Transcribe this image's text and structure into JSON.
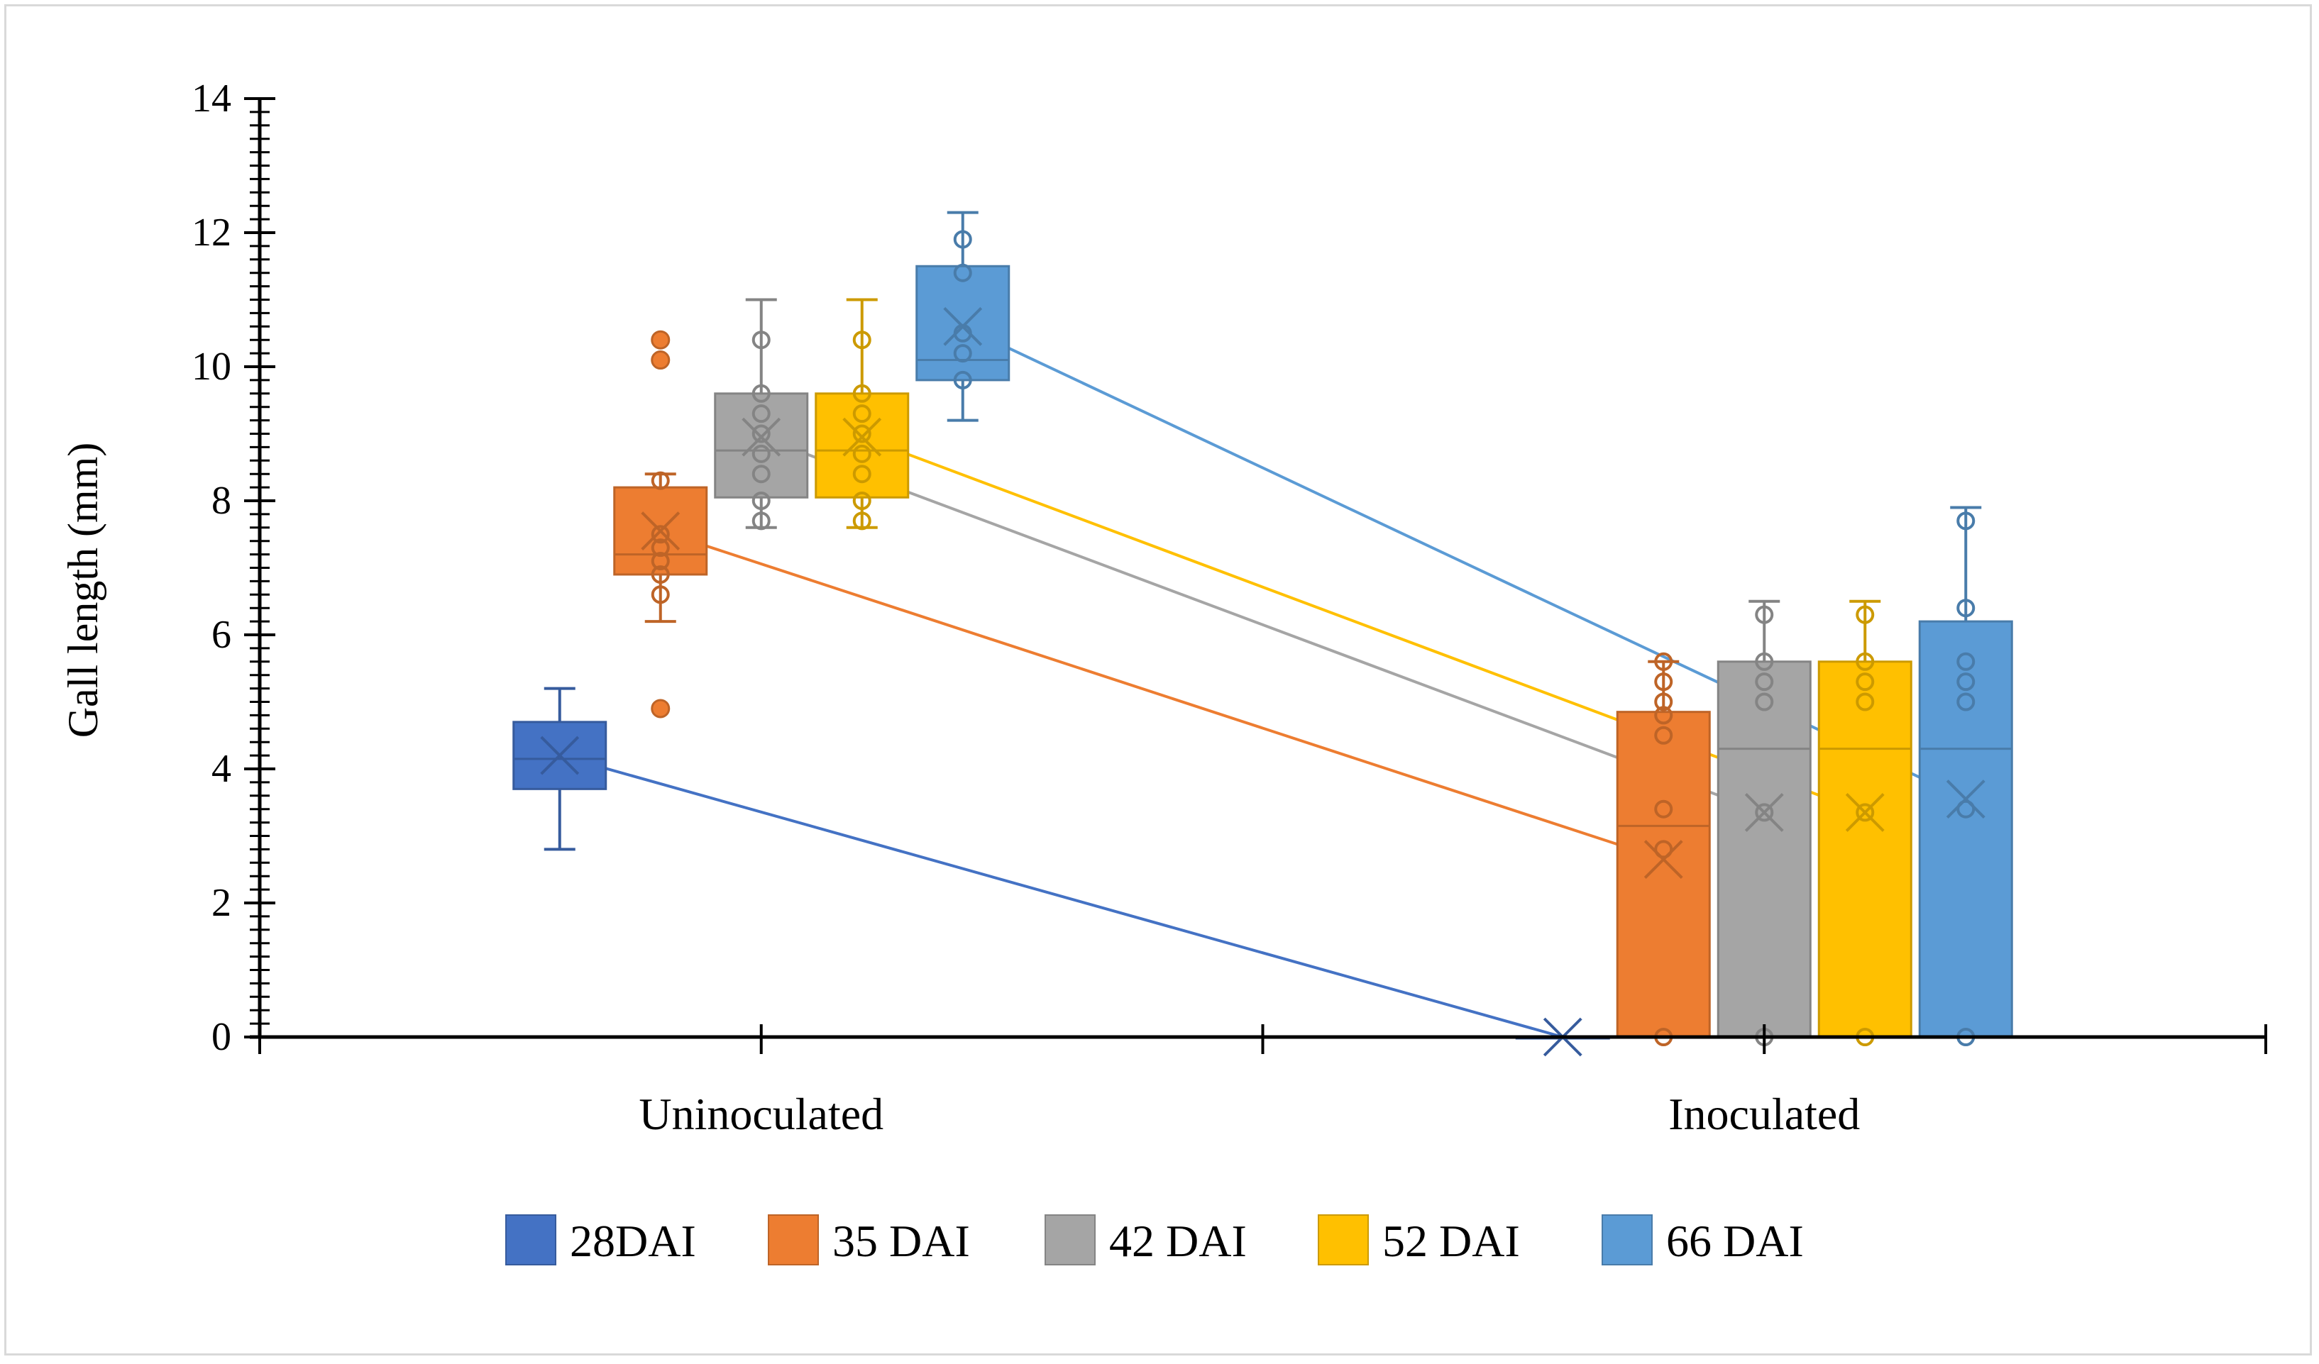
{
  "chart_data": {
    "type": "box",
    "title": "",
    "xlabel": "",
    "ylabel": "Gall length (mm)",
    "ylim": [
      0,
      14
    ],
    "yticks": [
      "0",
      "2",
      "4",
      "6",
      "8",
      "10",
      "12",
      "14"
    ],
    "categories": [
      "Uninoculated",
      "Inoculated"
    ],
    "series": [
      {
        "name": "28DAI",
        "color": "#4472c4",
        "boxes": [
          {
            "min": 2.8,
            "q1": 3.7,
            "median": 4.15,
            "q3": 4.7,
            "max": 5.2,
            "mean": 4.2,
            "points": []
          },
          {
            "min": 0,
            "q1": 0,
            "median": 0,
            "q3": 0,
            "max": 0,
            "mean": 0,
            "points": []
          }
        ]
      },
      {
        "name": "35 DAI",
        "color": "#ed7d31",
        "boxes": [
          {
            "min": 6.2,
            "q1": 6.9,
            "median": 7.2,
            "q3": 8.2,
            "max": 8.4,
            "mean": 7.55,
            "points": [
              6.6,
              6.9,
              7.1,
              7.3,
              7.5,
              8.3
            ],
            "outliers": [
              4.9,
              10.1,
              10.4
            ]
          },
          {
            "min": 0,
            "q1": 0,
            "median": 3.15,
            "q3": 4.85,
            "max": 5.6,
            "mean": 2.65,
            "points": [
              0,
              2.8,
              3.4,
              4.5,
              4.8,
              5.0,
              5.3,
              5.6
            ]
          }
        ]
      },
      {
        "name": "42 DAI",
        "color": "#a5a5a5",
        "boxes": [
          {
            "min": 7.6,
            "q1": 8.05,
            "median": 8.75,
            "q3": 9.6,
            "max": 11.0,
            "mean": 8.95,
            "points": [
              7.7,
              8.0,
              8.4,
              8.7,
              9.0,
              9.3,
              9.6,
              10.4
            ]
          },
          {
            "min": 0,
            "q1": 0,
            "median": 4.3,
            "q3": 5.6,
            "max": 6.5,
            "mean": 3.35,
            "points": [
              0,
              3.35,
              5.0,
              5.3,
              5.6,
              6.3
            ]
          }
        ]
      },
      {
        "name": "52 DAI",
        "color": "#ffc000",
        "boxes": [
          {
            "min": 7.6,
            "q1": 8.05,
            "median": 8.75,
            "q3": 9.6,
            "max": 11.0,
            "mean": 8.95,
            "points": [
              7.7,
              8.0,
              8.4,
              8.7,
              9.0,
              9.3,
              9.6,
              10.4
            ]
          },
          {
            "min": 0,
            "q1": 0,
            "median": 4.3,
            "q3": 5.6,
            "max": 6.5,
            "mean": 3.35,
            "points": [
              0,
              3.35,
              5.0,
              5.3,
              5.6,
              6.3
            ]
          }
        ]
      },
      {
        "name": "66 DAI",
        "color": "#5b9bd5",
        "boxes": [
          {
            "min": 9.2,
            "q1": 9.8,
            "median": 10.1,
            "q3": 11.5,
            "max": 12.3,
            "mean": 10.6,
            "points": [
              9.8,
              10.2,
              10.5,
              11.4,
              11.9
            ]
          },
          {
            "min": 0,
            "q1": 0,
            "median": 4.3,
            "q3": 6.2,
            "max": 7.9,
            "mean": 3.55,
            "points": [
              0,
              3.4,
              5.0,
              5.3,
              5.6,
              6.4,
              7.7
            ]
          }
        ]
      }
    ],
    "mean_lines": true,
    "legend_position": "bottom"
  }
}
